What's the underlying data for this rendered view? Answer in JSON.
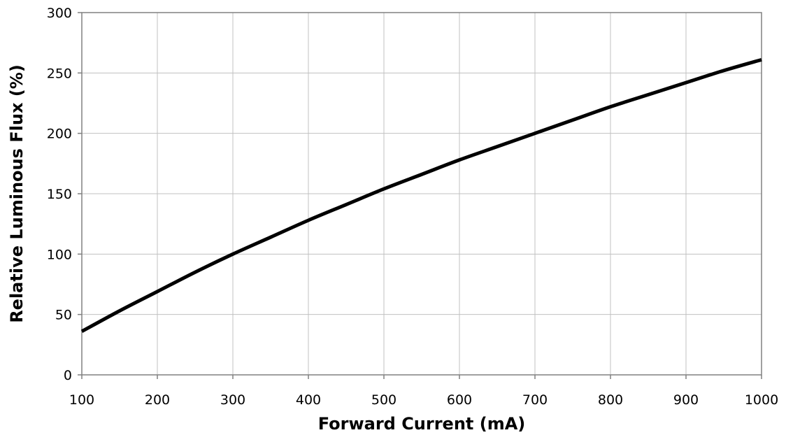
{
  "chart_data": {
    "type": "line",
    "title": "",
    "xlabel": "Forward Current (mA)",
    "ylabel": "Relative Luminous Flux (%)",
    "xlim": [
      100,
      1000
    ],
    "ylim": [
      0,
      300
    ],
    "x_ticks": [
      100,
      200,
      300,
      400,
      500,
      600,
      700,
      800,
      900,
      1000
    ],
    "y_ticks": [
      0,
      50,
      100,
      150,
      200,
      250,
      300
    ],
    "grid": true,
    "legend": "none",
    "series": [
      {
        "color": "#000000",
        "x": [
          100,
          150,
          200,
          250,
          300,
          350,
          400,
          450,
          500,
          550,
          600,
          650,
          700,
          750,
          800,
          850,
          900,
          950,
          1000
        ],
        "y": [
          36,
          53,
          69,
          85,
          100,
          114,
          128,
          141,
          154,
          166,
          178,
          189,
          200,
          211,
          222,
          232,
          242,
          252,
          261
        ]
      }
    ]
  },
  "colors": {
    "background": "#ffffff",
    "grid": "#c0c0c0",
    "axis": "#808080",
    "line": "#000000"
  }
}
